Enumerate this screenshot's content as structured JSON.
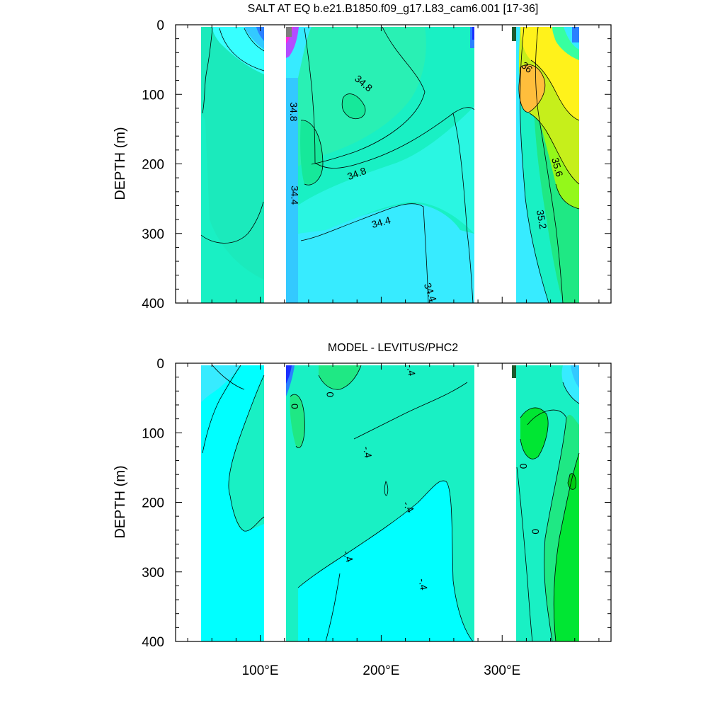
{
  "chart_data": [
    {
      "type": "heatmap",
      "title": "SALT AT EQ b.e21.B1850.f09_g17.L83_cam6.001 [17-36]",
      "ylabel": "DEPTH (m)",
      "xlabel": "",
      "xlim": [
        30,
        390
      ],
      "ylim": [
        0,
        400
      ],
      "y_reversed": true,
      "y_ticks": [
        "0",
        "100",
        "200",
        "300",
        "400"
      ],
      "x_ticks": [
        {
          "value": 100,
          "label": "100°E"
        },
        {
          "value": 200,
          "label": "200°E"
        },
        {
          "value": 300,
          "label": "300°E"
        }
      ],
      "ocean_segments": [
        {
          "x0": 45,
          "x1": 98
        },
        {
          "x0": 118,
          "x1": 133
        },
        {
          "x0": 133,
          "x1": 279
        },
        {
          "x0": 314,
          "x1": 368
        }
      ],
      "contour_labels": [
        {
          "text": "34.8",
          "x": 185,
          "depth": 85,
          "angle": 40
        },
        {
          "text": "34.8",
          "x": 127,
          "depth": 125,
          "angle": 90
        },
        {
          "text": "34.8",
          "x": 180,
          "depth": 215,
          "angle": -20
        },
        {
          "text": "34.4",
          "x": 128,
          "depth": 245,
          "angle": 90
        },
        {
          "text": "34.4",
          "x": 200,
          "depth": 285,
          "angle": -15
        },
        {
          "text": "34.4",
          "x": 240,
          "depth": 385,
          "angle": 70
        },
        {
          "text": "36",
          "x": 320,
          "depth": 62,
          "angle": 40
        },
        {
          "text": "35.6",
          "x": 345,
          "depth": 205,
          "angle": 75
        },
        {
          "text": "35.2",
          "x": 332,
          "depth": 280,
          "angle": 80
        }
      ]
    },
    {
      "type": "heatmap",
      "title": "MODEL - LEVITUS/PHC2",
      "ylabel": "DEPTH (m)",
      "xlabel": "",
      "xlim": [
        30,
        390
      ],
      "ylim": [
        0,
        400
      ],
      "y_reversed": true,
      "y_ticks": [
        "0",
        "100",
        "200",
        "300",
        "400"
      ],
      "x_ticks": [
        {
          "value": 100,
          "label": "100°E"
        },
        {
          "value": 200,
          "label": "200°E"
        },
        {
          "value": 300,
          "label": "300°E"
        }
      ],
      "ocean_segments": [
        {
          "x0": 45,
          "x1": 98
        },
        {
          "x0": 118,
          "x1": 133
        },
        {
          "x0": 133,
          "x1": 279
        },
        {
          "x0": 314,
          "x1": 368
        }
      ],
      "contour_labels": [
        {
          "text": "-.4",
          "x": 224,
          "depth": 10,
          "angle": 80
        },
        {
          "text": "0",
          "x": 157,
          "depth": 45,
          "angle": 90
        },
        {
          "text": "0",
          "x": 128,
          "depth": 62,
          "angle": 90
        },
        {
          "text": "-.4",
          "x": 188,
          "depth": 128,
          "angle": 80
        },
        {
          "text": "0",
          "x": 317,
          "depth": 148,
          "angle": 90
        },
        {
          "text": "-.4",
          "x": 222,
          "depth": 207,
          "angle": 60
        },
        {
          "text": "0",
          "x": 327,
          "depth": 242,
          "angle": 90
        },
        {
          "text": "-.4",
          "x": 172,
          "depth": 278,
          "angle": 70
        },
        {
          "text": "-.4",
          "x": 234,
          "depth": 318,
          "angle": 80
        }
      ]
    }
  ]
}
